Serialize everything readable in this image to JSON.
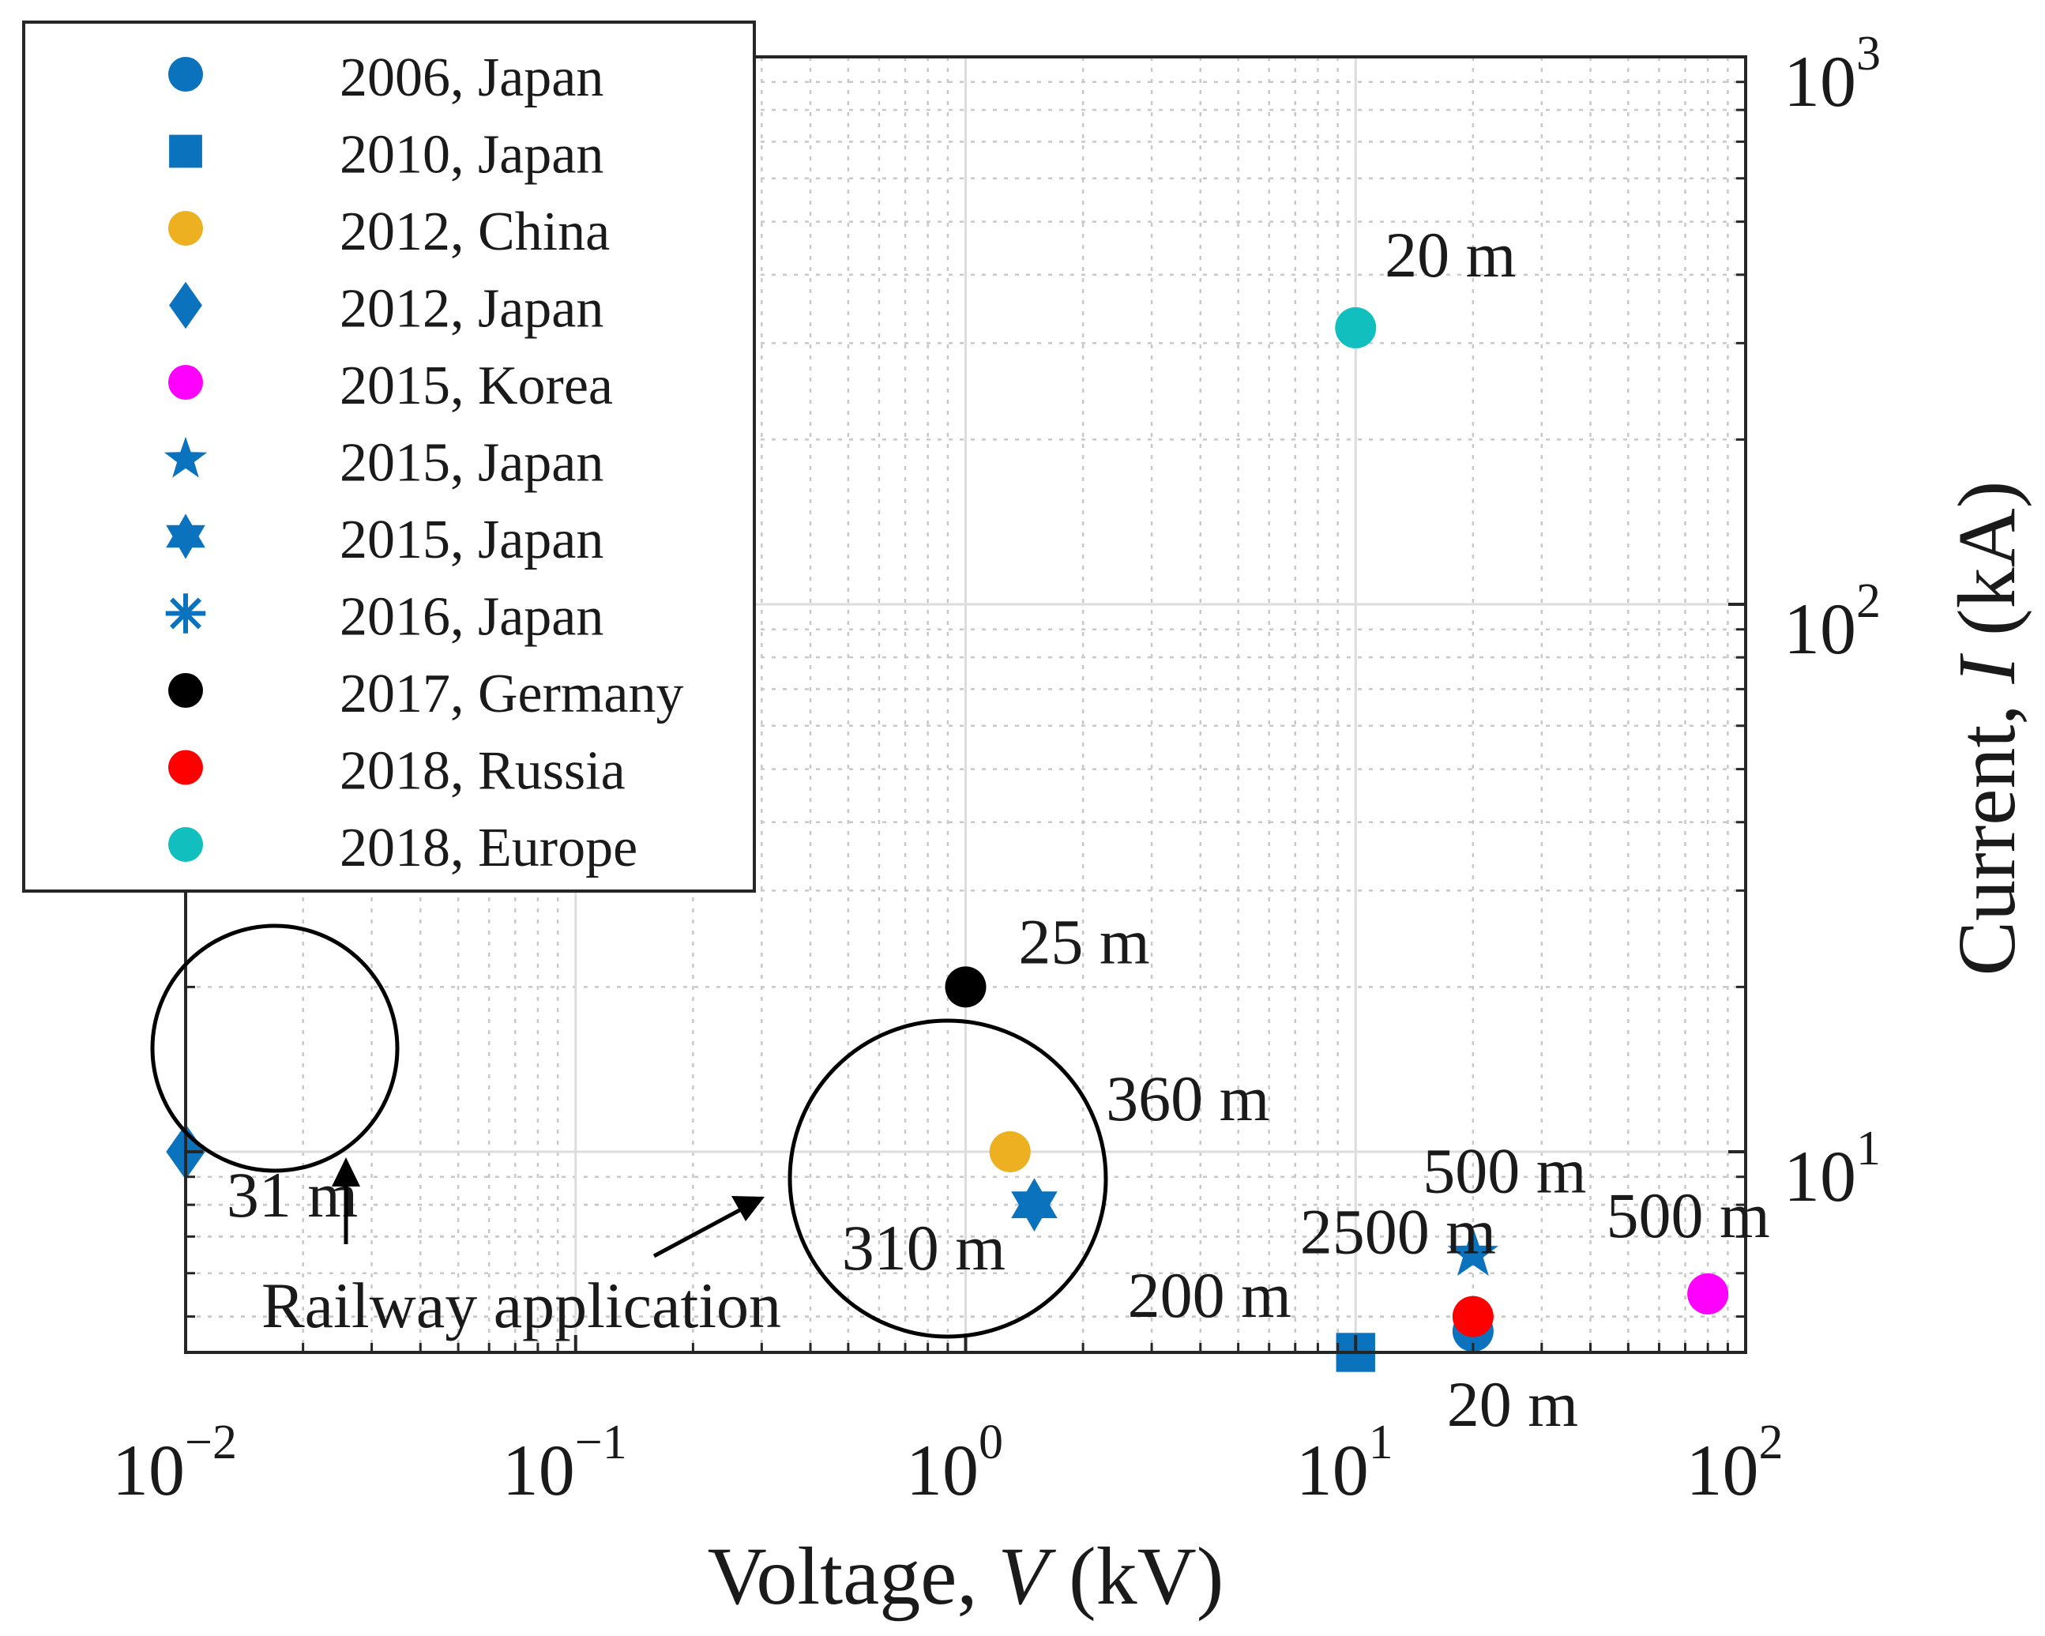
{
  "chart_data": {
    "type": "scatter",
    "x_scale": "log",
    "y_scale": "log",
    "xlabel_prefix": "Voltage,",
    "xlabel_var": "V",
    "xlabel_unit": "(kV)",
    "ylabel_prefix": "Current,",
    "ylabel_var": "I",
    "ylabel_unit": "(kA)",
    "xlim": [
      0.01,
      100
    ],
    "ylim": [
      4.3,
      1000
    ],
    "grid": true,
    "legend_position": "top-left",
    "x_ticks": [
      {
        "value": 0.01,
        "base": "10",
        "exp": "−2"
      },
      {
        "value": 0.1,
        "base": "10",
        "exp": "−1"
      },
      {
        "value": 1,
        "base": "10",
        "exp": "0"
      },
      {
        "value": 10,
        "base": "10",
        "exp": "1"
      },
      {
        "value": 100,
        "base": "10",
        "exp": "2"
      }
    ],
    "y_ticks": [
      {
        "value": 10,
        "base": "10",
        "exp": "1"
      },
      {
        "value": 100,
        "base": "10",
        "exp": "2"
      },
      {
        "value": 1000,
        "base": "10",
        "exp": "3"
      }
    ],
    "colors": {
      "blue": "#0b72bd",
      "orange": "#edb021",
      "magenta": "#ff00ff",
      "black": "#000000",
      "red": "#ff0000",
      "cyan": "#12bfbf"
    },
    "series": [
      {
        "name": "2006, Japan",
        "marker": "circle",
        "color": "#0b72bd",
        "points": [
          {
            "x": 20,
            "y": 4.7
          }
        ]
      },
      {
        "name": "2010, Japan",
        "marker": "square",
        "color": "#0b72bd",
        "points": [
          {
            "x": 10,
            "y": 4.3
          }
        ]
      },
      {
        "name": "2012, China",
        "marker": "circle",
        "color": "#edb021",
        "points": [
          {
            "x": 1.3,
            "y": 10
          }
        ]
      },
      {
        "name": "2012, Japan",
        "marker": "diamond",
        "color": "#0b72bd",
        "points": [
          {
            "x": 0.01,
            "y": 10
          }
        ]
      },
      {
        "name": "2015, Korea",
        "marker": "circle",
        "color": "#ff00ff",
        "points": [
          {
            "x": 80,
            "y": 5.5
          }
        ]
      },
      {
        "name": "2015, Japan",
        "marker": "pentagram",
        "color": "#0b72bd",
        "points": [
          {
            "x": 20,
            "y": 6.5
          }
        ]
      },
      {
        "name": "2015, Japan",
        "marker": "hexagram",
        "color": "#0b72bd",
        "points": [
          {
            "x": 1.5,
            "y": 8
          }
        ]
      },
      {
        "name": "2016, Japan",
        "marker": "asterisk",
        "color": "#0b72bd",
        "points": []
      },
      {
        "name": "2017, Germany",
        "marker": "circle",
        "color": "#000000",
        "points": [
          {
            "x": 1,
            "y": 20
          }
        ]
      },
      {
        "name": "2018, Russia",
        "marker": "circle",
        "color": "#ff0000",
        "points": [
          {
            "x": 20,
            "y": 5
          }
        ]
      },
      {
        "name": "2018, Europe",
        "marker": "circle",
        "color": "#12bfbf",
        "points": [
          {
            "x": 10,
            "y": 320
          }
        ]
      }
    ],
    "annotations": [
      {
        "text": "20 m",
        "x": 10,
        "y": 320
      },
      {
        "text": "25 m",
        "x": 1,
        "y": 20
      },
      {
        "text": "360 m",
        "x": 1.3,
        "y": 10
      },
      {
        "text": "31 m",
        "x": 0.01,
        "y": 10
      },
      {
        "text": "310 m",
        "x": 1.5,
        "y": 8
      },
      {
        "text": "500 m",
        "x": 20,
        "y": 6.5
      },
      {
        "text": "500 m",
        "x": 80,
        "y": 5.5
      },
      {
        "text": "2500 m",
        "x": 20,
        "y": 5
      },
      {
        "text": "200 m",
        "x": 10,
        "y": 4.3
      },
      {
        "text": "20 m",
        "x": 20,
        "y": 4.7
      }
    ],
    "railway_label": "Railway application"
  }
}
